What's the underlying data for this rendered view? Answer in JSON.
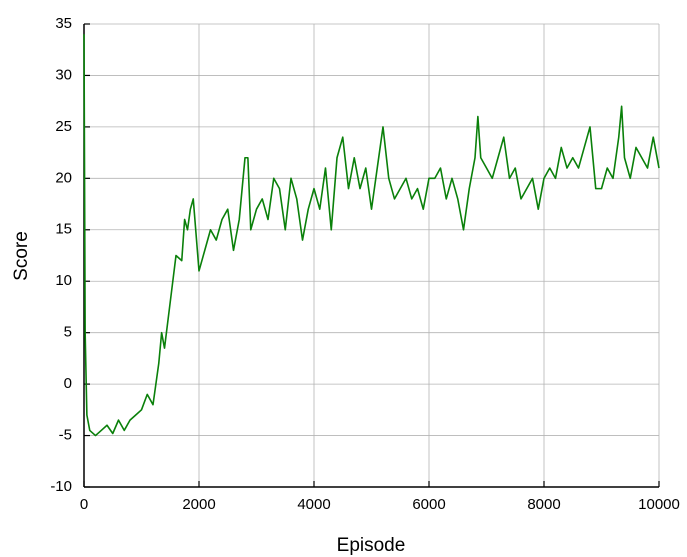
{
  "chart_data": {
    "type": "line",
    "xlabel": "Episode",
    "ylabel": "Score",
    "x": [
      0,
      20,
      50,
      100,
      200,
      300,
      400,
      500,
      600,
      700,
      800,
      900,
      1000,
      1100,
      1200,
      1300,
      1350,
      1400,
      1500,
      1600,
      1700,
      1750,
      1800,
      1850,
      1900,
      2000,
      2100,
      2200,
      2300,
      2400,
      2500,
      2600,
      2700,
      2800,
      2850,
      2900,
      3000,
      3100,
      3200,
      3300,
      3400,
      3500,
      3600,
      3700,
      3800,
      3900,
      4000,
      4100,
      4200,
      4300,
      4400,
      4500,
      4600,
      4700,
      4800,
      4900,
      5000,
      5100,
      5200,
      5300,
      5400,
      5500,
      5600,
      5700,
      5800,
      5900,
      6000,
      6100,
      6200,
      6300,
      6400,
      6500,
      6600,
      6700,
      6800,
      6850,
      6900,
      7000,
      7100,
      7200,
      7300,
      7400,
      7500,
      7600,
      7700,
      7800,
      7900,
      8000,
      8100,
      8200,
      8300,
      8400,
      8500,
      8600,
      8700,
      8800,
      8900,
      9000,
      9100,
      9200,
      9300,
      9350,
      9400,
      9500,
      9600,
      9700,
      9800,
      9900,
      10000
    ],
    "series": [
      {
        "name": "Score",
        "color": "#0a800a",
        "values": [
          34,
          5,
          -3,
          -4.5,
          -5,
          -4.5,
          -4,
          -4.8,
          -3.5,
          -4.5,
          -3.5,
          -3,
          -2.5,
          -1,
          -2,
          2,
          5,
          3.5,
          8,
          12.5,
          12,
          16,
          15,
          17,
          18,
          11,
          13,
          15,
          14,
          16,
          17,
          13,
          16,
          22,
          22,
          15,
          17,
          18,
          16,
          20,
          19,
          15,
          20,
          18,
          14,
          17,
          19,
          17,
          21,
          15,
          22,
          24,
          19,
          22,
          19,
          21,
          17,
          21,
          25,
          20,
          18,
          19,
          20,
          18,
          19,
          17,
          20,
          20,
          21,
          18,
          20,
          18,
          15,
          19,
          22,
          26,
          22,
          21,
          20,
          22,
          24,
          20,
          21,
          18,
          19,
          20,
          17,
          20,
          21,
          20,
          23,
          21,
          22,
          21,
          23,
          25,
          19,
          19,
          21,
          20,
          24,
          27,
          22,
          20,
          23,
          22,
          21,
          24,
          21
        ]
      }
    ],
    "xlim": [
      0,
      10000
    ],
    "xticks": [
      0,
      2000,
      4000,
      6000,
      8000,
      10000
    ],
    "ylim": [
      -10,
      35
    ],
    "yticks": [
      -10,
      -5,
      0,
      5,
      10,
      15,
      20,
      25,
      30,
      35
    ],
    "grid": true
  }
}
